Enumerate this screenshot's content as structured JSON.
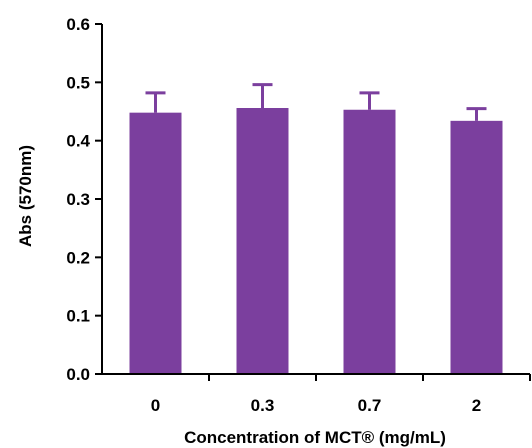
{
  "chart_data": {
    "type": "bar",
    "categories": [
      "0",
      "0.3",
      "0.7",
      "2"
    ],
    "values": [
      0.448,
      0.456,
      0.453,
      0.434
    ],
    "error_upper": [
      0.034,
      0.04,
      0.029,
      0.021
    ],
    "xlabel": "Concentration of MCT® (mg/mL)",
    "ylabel": "Abs (570nm)",
    "ylim": [
      0,
      0.6
    ],
    "yticks": [
      "0.0",
      "0.1",
      "0.2",
      "0.3",
      "0.4",
      "0.5",
      "0.6"
    ],
    "grid": false,
    "legend": "none",
    "colors": {
      "bar": "#7B3F9E",
      "axis": "#000000"
    }
  }
}
